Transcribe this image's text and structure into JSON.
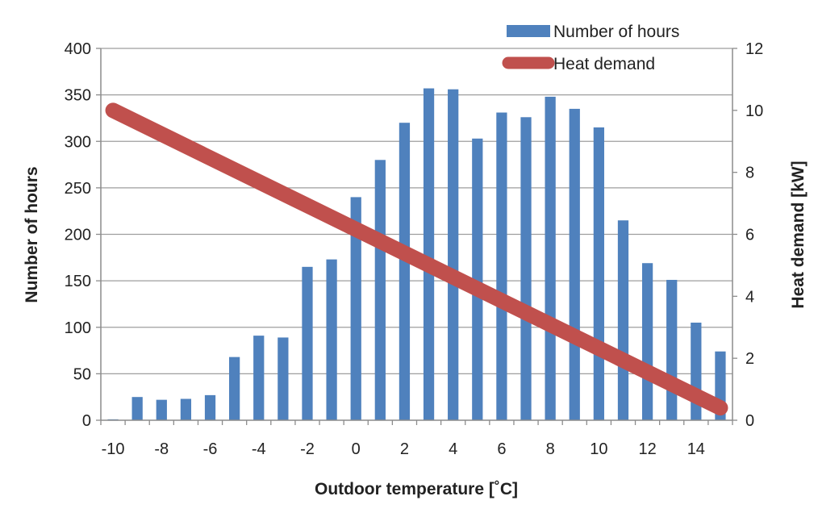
{
  "chart_data": {
    "type": "bar",
    "title": "",
    "xlabel": "Outdoor temperature [˚C]",
    "ylabel_left": "Number of hours",
    "ylabel_right": "Heat demand [kW]",
    "x": [
      -10,
      -9,
      -8,
      -7,
      -6,
      -5,
      -4,
      -3,
      -2,
      -1,
      0,
      1,
      2,
      3,
      4,
      5,
      6,
      7,
      8,
      9,
      10,
      11,
      12,
      13,
      14,
      15
    ],
    "x_tick_labels": [
      "-10",
      "-8",
      "-6",
      "-4",
      "-2",
      "0",
      "2",
      "4",
      "6",
      "8",
      "10",
      "12",
      "14"
    ],
    "x_tick_values": [
      -10,
      -8,
      -6,
      -4,
      -2,
      0,
      2,
      4,
      6,
      8,
      10,
      12,
      14
    ],
    "ylim_left": [
      0,
      400
    ],
    "yticks_left": [
      "0",
      "50",
      "100",
      "150",
      "200",
      "250",
      "300",
      "350",
      "400"
    ],
    "ylim_right": [
      0,
      12
    ],
    "yticks_right": [
      "0",
      "2",
      "4",
      "6",
      "8",
      "10",
      "12"
    ],
    "grid": true,
    "legend_position": "top-right",
    "series": [
      {
        "name": "Number of hours",
        "type": "bar",
        "axis": "left",
        "color": "#4F81BD",
        "values": [
          1,
          25,
          22,
          23,
          27,
          68,
          91,
          89,
          165,
          173,
          240,
          280,
          320,
          357,
          356,
          303,
          331,
          326,
          348,
          335,
          315,
          215,
          169,
          151,
          105,
          74
        ]
      },
      {
        "name": "Heat demand",
        "type": "line",
        "axis": "right",
        "color": "#C0504D",
        "x": [
          -10,
          15
        ],
        "values": [
          10,
          0.4
        ]
      }
    ]
  }
}
